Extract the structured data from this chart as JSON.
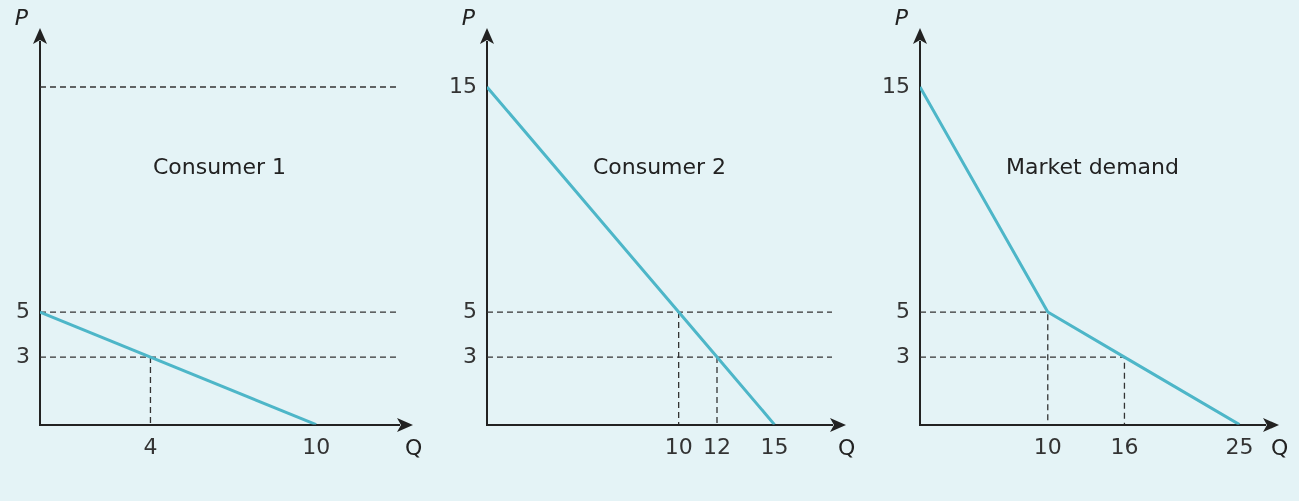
{
  "chart_data": [
    {
      "type": "line",
      "title": "Consumer 1",
      "xlabel": "Q",
      "ylabel": "P",
      "xlim": [
        0,
        13
      ],
      "ylim": [
        0,
        17
      ],
      "xticks": [
        4,
        10
      ],
      "yticks": [
        3,
        5
      ],
      "marker": "none",
      "series": [
        {
          "color": "#4db6c8",
          "x": [
            0,
            10
          ],
          "values": [
            5,
            0
          ]
        },
        {
          "color": "#333333",
          "line_style": "dashed",
          "x": [
            0,
            13
          ],
          "values": [
            15,
            15
          ]
        },
        {
          "color": "#333333",
          "line_style": "dashed",
          "x": [
            0,
            13
          ],
          "values": [
            5,
            5
          ]
        },
        {
          "color": "#333333",
          "line_style": "dashed",
          "x": [
            0,
            13
          ],
          "values": [
            3,
            3
          ]
        },
        {
          "color": "#333333",
          "line_style": "dashed",
          "x": [
            4,
            4
          ],
          "values": [
            3,
            0
          ]
        }
      ]
    },
    {
      "type": "line",
      "title": "Consumer 2",
      "xlabel": "Q",
      "ylabel": "P",
      "xlim": [
        0,
        18
      ],
      "ylim": [
        0,
        17
      ],
      "xticks": [
        10,
        12,
        15
      ],
      "yticks": [
        3,
        5,
        15
      ],
      "marker": "none",
      "series": [
        {
          "color": "#4db6c8",
          "x": [
            0,
            10,
            12,
            15
          ],
          "values": [
            15,
            5,
            3,
            0
          ]
        },
        {
          "color": "#333333",
          "line_style": "dashed",
          "x": [
            0,
            18
          ],
          "values": [
            5,
            5
          ]
        },
        {
          "color": "#333333",
          "line_style": "dashed",
          "x": [
            0,
            18
          ],
          "values": [
            3,
            3
          ]
        },
        {
          "color": "#333333",
          "line_style": "dashed",
          "x": [
            10,
            10
          ],
          "values": [
            5,
            0
          ]
        },
        {
          "color": "#333333",
          "line_style": "dashed",
          "x": [
            12,
            12
          ],
          "values": [
            3,
            0
          ]
        }
      ]
    },
    {
      "type": "line",
      "title": "Market demand",
      "xlabel": "Q",
      "ylabel": "P",
      "xlim": [
        0,
        27
      ],
      "ylim": [
        0,
        17
      ],
      "xticks": [
        10,
        16,
        25
      ],
      "yticks": [
        3,
        5,
        15
      ],
      "marker": "none",
      "series": [
        {
          "color": "#4db6c8",
          "x": [
            0,
            10,
            16,
            25
          ],
          "values": [
            15,
            5,
            3,
            0
          ]
        },
        {
          "color": "#333333",
          "line_style": "dashed",
          "x": [
            0,
            10,
            10
          ],
          "values": [
            5,
            5,
            0
          ]
        },
        {
          "color": "#333333",
          "line_style": "dashed",
          "x": [
            0,
            16,
            16
          ],
          "values": [
            3,
            3,
            0
          ]
        }
      ]
    }
  ]
}
